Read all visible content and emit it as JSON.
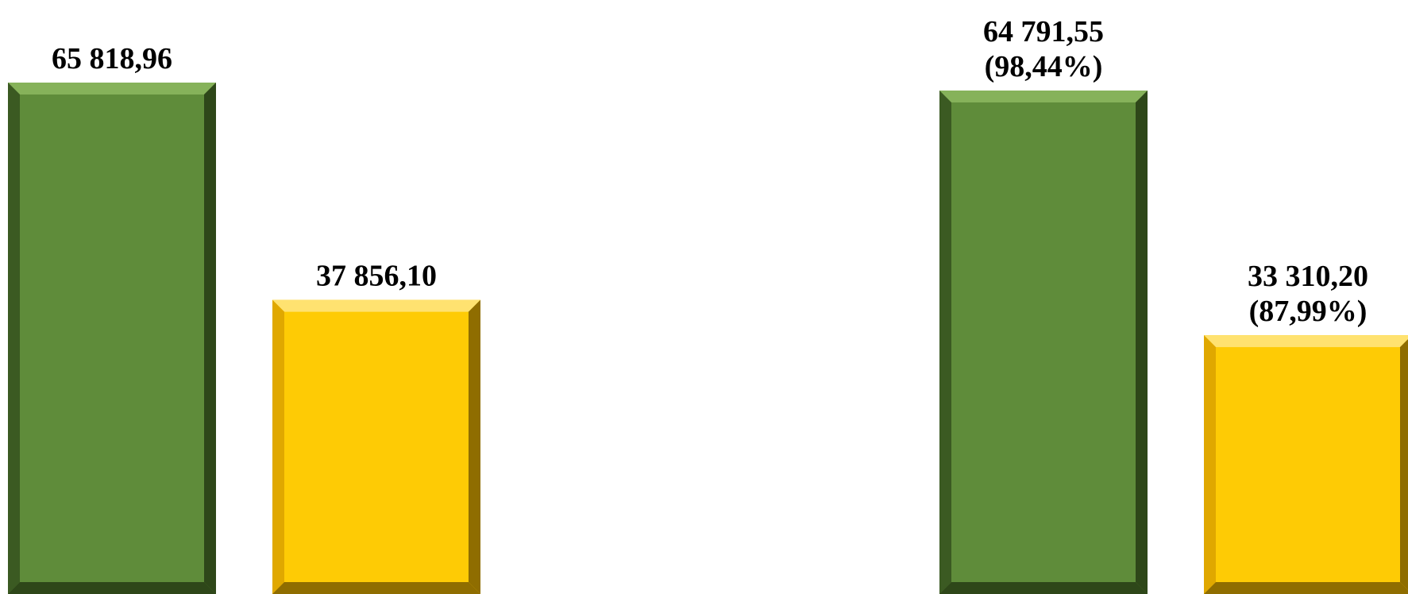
{
  "chart_data": {
    "type": "bar",
    "bar_style": "beveled-3d",
    "colors": {
      "green": {
        "face": "#5f8c3a",
        "light": "#86b25a",
        "dark": "#3b5a22",
        "darker": "#2e4719"
      },
      "yellow": {
        "face": "#fecb05",
        "light": "#ffe270",
        "dark": "#e0a800",
        "darker": "#8f6d00"
      }
    },
    "groups": [
      {
        "bars": [
          {
            "color": "green",
            "value": 65818.96,
            "label_lines": [
              "65 818,96"
            ]
          },
          {
            "color": "yellow",
            "value": 37856.1,
            "label_lines": [
              "37 856,10"
            ]
          }
        ]
      },
      {
        "bars": [
          {
            "color": "green",
            "value": 64791.55,
            "label_lines": [
              "64 791,55",
              "(98,44%)"
            ]
          },
          {
            "color": "yellow",
            "value": 33310.2,
            "label_lines": [
              "33 310,20",
              "(87,99%)"
            ]
          }
        ]
      }
    ]
  }
}
